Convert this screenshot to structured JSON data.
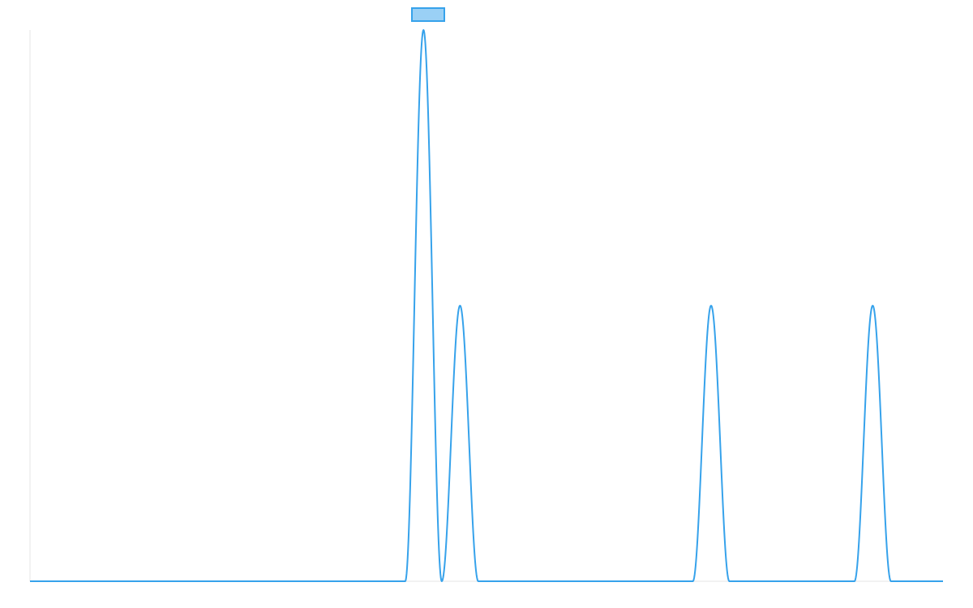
{
  "colors": {
    "series_stroke": "#36a2eb",
    "legend_fill": "#9ad0f5",
    "axis": "#e6e6e6"
  },
  "chart_data": {
    "type": "line",
    "title": "",
    "xlabel": "",
    "ylabel": "",
    "xlim": [
      0,
      100
    ],
    "ylim": [
      0,
      2
    ],
    "grid": false,
    "legend": {
      "position": "top",
      "entries": [
        {
          "name": ""
        }
      ]
    },
    "peak_shape": "bell",
    "peak_half_width": 2,
    "series": [
      {
        "peaks": [
          {
            "x": 43.1,
            "y": 2
          },
          {
            "x": 47.1,
            "y": 1
          },
          {
            "x": 74.6,
            "y": 1
          },
          {
            "x": 92.3,
            "y": 1
          }
        ]
      }
    ]
  }
}
